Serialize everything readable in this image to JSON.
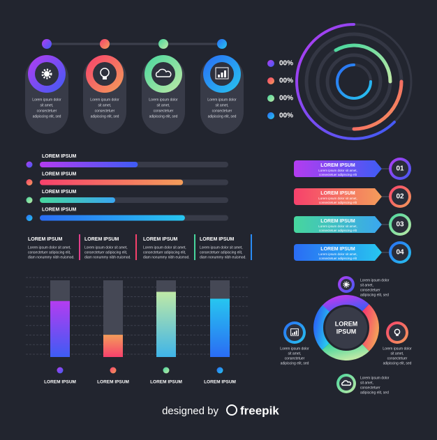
{
  "timeline": {
    "items": [
      {
        "text": [
          "Lorem ipsum dolor",
          "sit amet,",
          "consectetuer",
          "adipiscing elit, sed"
        ]
      },
      {
        "text": [
          "Lorem ipsum dolor",
          "sit amet,",
          "consectetuer",
          "adipiscing elit, sed"
        ]
      },
      {
        "text": [
          "Lorem ipsum dolor",
          "sit amet,",
          "consectetuer",
          "adipiscing elit, sed"
        ]
      },
      {
        "text": [
          "Lorem ipsum dolor",
          "sit amet,",
          "consectetuer",
          "adipiscing elit, sed"
        ]
      }
    ]
  },
  "rings": {
    "labels": [
      "00%",
      "00%",
      "00%",
      "00%"
    ]
  },
  "progress": {
    "items": [
      {
        "label": "LOREM IPSUM",
        "value": 52
      },
      {
        "label": "LOREM IPSUM",
        "value": 76
      },
      {
        "label": "LOREM IPSUM",
        "value": 40
      },
      {
        "label": "LOREM IPSUM",
        "value": 77
      }
    ]
  },
  "text_blocks": [
    {
      "title": "LOREM IPSUM",
      "lines": [
        "Lorem ipsum dolor sit amet,",
        "consectetuer adipiscing elit,",
        "diam nonummy nibh euismod."
      ]
    },
    {
      "title": "LOREM IPSUM",
      "lines": [
        "Lorem ipsum dolor sit amet,",
        "consectetuer adipiscing elit,",
        "diam nonummy nibh euismod."
      ]
    },
    {
      "title": "LOREM IPSUM",
      "lines": [
        "Lorem ipsum dolor sit amet,",
        "consectetuer adipiscing elit,",
        "diam nonummy nibh euismod."
      ]
    },
    {
      "title": "LOREM IPSUM",
      "lines": [
        "Lorem ipsum dolor sit amet,",
        "consectetuer adipiscing elit,",
        "diam nonummy nibh euismod."
      ]
    }
  ],
  "steps": [
    {
      "number": "01",
      "title": "LOREM IPSUM",
      "lines": [
        "Lorem ipsum dolor sit amet,",
        "consectetuer adipiscing elit"
      ]
    },
    {
      "number": "02",
      "title": "LOREM IPSUM",
      "lines": [
        "Lorem ipsum dolor sit amet,",
        "consectetuer adipiscing elit"
      ]
    },
    {
      "number": "03",
      "title": "LOREM IPSUM",
      "lines": [
        "Lorem ipsum dolor sit amet,",
        "consectetuer adipiscing elit"
      ]
    },
    {
      "number": "04",
      "title": "LOREM IPSUM",
      "lines": [
        "Lorem ipsum dolor sit amet,",
        "consectetuer adipiscing elit"
      ]
    }
  ],
  "columns": {
    "items": [
      {
        "label": "LOREM IPSUM",
        "value": 73
      },
      {
        "label": "LOREM IPSUM",
        "value": 29
      },
      {
        "label": "LOREM IPSUM",
        "value": 85
      },
      {
        "label": "LOREM IPSUM",
        "value": 76
      }
    ]
  },
  "donut": {
    "center": [
      "LOREM",
      "IPSUM"
    ],
    "notes": [
      {
        "lines": [
          "Lorem ipsum dolor",
          "sit amet,",
          "consectetuer",
          "adipiscing elit, sed"
        ]
      },
      {
        "lines": [
          "Lorem ipsum dolor",
          "sit amet,",
          "consectetuer",
          "adipiscing elit, sed"
        ]
      },
      {
        "lines": [
          "Lorem ipsum dolor",
          "sit amet,",
          "consectetuer",
          "adipiscing elit, sed"
        ]
      },
      {
        "lines": [
          "Lorem ipsum dolor",
          "sit amet,",
          "consectetuer",
          "adipiscing elit, sed"
        ]
      }
    ]
  },
  "footer": {
    "text": "designed by",
    "brand": "freepik"
  }
}
